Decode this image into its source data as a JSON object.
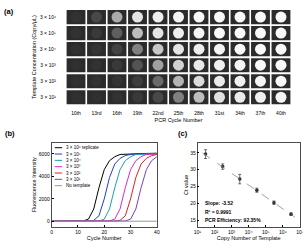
{
  "chart_data": [
    {
      "type": "heatmap",
      "title": "(a)",
      "xlabel": "PCR Cycle Number",
      "ylabel": "Template Concentration (Copy/μL)",
      "x": [
        "10th",
        "13rd",
        "16th",
        "19th",
        "22nd",
        "25th",
        "28th",
        "31st",
        "34th",
        "37th",
        "40th"
      ],
      "y": [
        "3 × 10⁶",
        "3 × 10⁵",
        "3 × 10⁴",
        "3 × 10³",
        "3 × 10²",
        "3 × 10¹"
      ],
      "cells": [
        [
          5,
          15,
          60,
          90,
          95,
          98,
          100,
          100,
          100,
          100,
          100
        ],
        [
          5,
          8,
          25,
          70,
          90,
          95,
          98,
          100,
          100,
          100,
          100
        ],
        [
          5,
          6,
          12,
          40,
          75,
          90,
          95,
          98,
          100,
          100,
          100
        ],
        [
          4,
          5,
          8,
          20,
          55,
          80,
          92,
          96,
          98,
          100,
          100
        ],
        [
          4,
          5,
          6,
          10,
          30,
          65,
          85,
          93,
          96,
          98,
          100
        ],
        [
          4,
          4,
          5,
          8,
          15,
          40,
          70,
          88,
          93,
          96,
          98
        ]
      ]
    },
    {
      "type": "line",
      "title": "(b)",
      "xlabel": "Cycle Number",
      "ylabel": "Fluorescence Intensity",
      "x": [
        0,
        2,
        4,
        6,
        8,
        10,
        12,
        14,
        16,
        18,
        20,
        22,
        24,
        26,
        28,
        30,
        32,
        34,
        36,
        38,
        40
      ],
      "xlim": [
        0,
        40
      ],
      "xticks": [
        0,
        10,
        20,
        30,
        40
      ],
      "ylim": [
        -500,
        7000
      ],
      "yticks": [
        0,
        2000,
        4000,
        6000
      ],
      "grid": false,
      "legend": "upper left",
      "series": [
        {
          "name": "3 × 10⁶ replicate",
          "color": "#000000",
          "values": [
            10,
            10,
            12,
            10,
            12,
            15,
            40,
            200,
            1100,
            3000,
            4600,
            5400,
            5750,
            5950,
            5980,
            6000,
            6020,
            6030,
            6040,
            6050,
            6060
          ]
        },
        {
          "name": "3 × 10⁵",
          "color": "#1f3fbf",
          "values": [
            10,
            12,
            10,
            11,
            12,
            10,
            14,
            20,
            90,
            500,
            2000,
            3900,
            5100,
            5600,
            5850,
            5950,
            5980,
            6000,
            6010,
            6020,
            6030
          ]
        },
        {
          "name": "3 × 10⁴",
          "color": "#1aa3a3",
          "values": [
            10,
            11,
            10,
            12,
            10,
            11,
            12,
            13,
            12,
            40,
            200,
            1100,
            3000,
            4600,
            5400,
            5750,
            5950,
            5970,
            5990,
            6000,
            6010
          ]
        },
        {
          "name": "3 × 10³",
          "color": "#d62ad6",
          "values": [
            10,
            10,
            11,
            12,
            11,
            10,
            12,
            10,
            11,
            12,
            13,
            40,
            200,
            1100,
            3000,
            4600,
            5400,
            5750,
            5950,
            5970,
            5990
          ]
        },
        {
          "name": "3 × 10²",
          "color": "#e02020",
          "values": [
            10,
            11,
            10,
            12,
            10,
            11,
            10,
            12,
            11,
            10,
            12,
            11,
            20,
            90,
            500,
            2000,
            3900,
            5100,
            5600,
            5850,
            5950
          ]
        },
        {
          "name": "3 × 10¹",
          "color": "#7b3fbf",
          "values": [
            10,
            12,
            11,
            10,
            11,
            12,
            10,
            11,
            12,
            10,
            11,
            12,
            10,
            11,
            40,
            200,
            1100,
            3000,
            4600,
            5400,
            5750
          ]
        },
        {
          "name": "No template",
          "color": "#999999",
          "values": [
            10,
            11,
            10,
            12,
            11,
            10,
            12,
            11,
            10,
            12,
            11,
            10,
            12,
            11,
            10,
            12,
            11,
            13,
            12,
            14,
            15
          ]
        }
      ]
    },
    {
      "type": "scatter",
      "title": "(c)",
      "xlabel": "Copy Number of Template",
      "ylabel": "Ct value",
      "log": "x",
      "grid": false,
      "xlim": [
        10,
        10000000
      ],
      "xticks": [
        {
          "value": 10,
          "label": "10¹"
        },
        {
          "value": 100,
          "label": "10²"
        },
        {
          "value": 1000,
          "label": "10³"
        },
        {
          "value": 10000,
          "label": "10⁴"
        },
        {
          "value": 100000,
          "label": "10⁵"
        },
        {
          "value": 1000000,
          "label": "10⁶"
        },
        {
          "value": 10000000,
          "label": "10⁷"
        }
      ],
      "ylim": [
        13,
        38
      ],
      "yticks": [
        15,
        20,
        25,
        30,
        35
      ],
      "annotations": [
        "Slope: -3.52",
        "R² = 0.9991",
        "PCR Efficiency: 92.35%"
      ],
      "series": [
        {
          "type": "scatter",
          "color": "#333333",
          "marker": "circle",
          "x": [
            30,
            300,
            3000,
            30000,
            300000,
            3000000
          ],
          "values": [
            34.6,
            30.9,
            27.2,
            23.9,
            20.2,
            16.8
          ],
          "errors": [
            1.3,
            0.8,
            1.4,
            0.6,
            0.5,
            0.4
          ]
        },
        {
          "type": "line",
          "color": "#888888",
          "line_style": "dashed",
          "x": [
            20,
            5000000
          ],
          "values": [
            34.92,
            15.92
          ]
        }
      ]
    }
  ]
}
